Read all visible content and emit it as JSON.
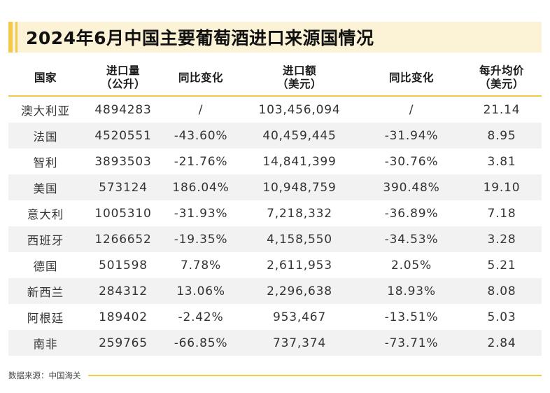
{
  "title": "2024年6月中国主要葡萄酒进口来源国情况",
  "header": {
    "country": "国家",
    "volume": [
      "进口量",
      "（公升）"
    ],
    "volume_yoy": "同比变化",
    "value": [
      "进口额",
      "（美元）"
    ],
    "value_yoy": "同比变化",
    "unit_price": [
      "每升均价",
      "（美元）"
    ]
  },
  "rows": [
    {
      "country": "澳大利亚",
      "volume": "4894283",
      "volume_yoy": "/",
      "value": "103,456,094",
      "value_yoy": "/",
      "unit_price": "21.14"
    },
    {
      "country": "法国",
      "volume": "4520551",
      "volume_yoy": "-43.60%",
      "value": "40,459,445",
      "value_yoy": "-31.94%",
      "unit_price": "8.95"
    },
    {
      "country": "智利",
      "volume": "3893503",
      "volume_yoy": "-21.76%",
      "value": "14,841,399",
      "value_yoy": "-30.76%",
      "unit_price": "3.81"
    },
    {
      "country": "美国",
      "volume": "573124",
      "volume_yoy": "186.04%",
      "value": "10,948,759",
      "value_yoy": "390.48%",
      "unit_price": "19.10"
    },
    {
      "country": "意大利",
      "volume": "1005310",
      "volume_yoy": "-31.93%",
      "value": "7,218,332",
      "value_yoy": "-36.89%",
      "unit_price": "7.18"
    },
    {
      "country": "西班牙",
      "volume": "1266652",
      "volume_yoy": "-19.35%",
      "value": "4,158,550",
      "value_yoy": "-34.53%",
      "unit_price": "3.28"
    },
    {
      "country": "德国",
      "volume": "501598",
      "volume_yoy": "7.78%",
      "value": "2,611,953",
      "value_yoy": "2.05%",
      "unit_price": "5.21"
    },
    {
      "country": "新西兰",
      "volume": "284312",
      "volume_yoy": "13.06%",
      "value": "2,296,638",
      "value_yoy": "18.93%",
      "unit_price": "8.08"
    },
    {
      "country": "阿根廷",
      "volume": "189402",
      "volume_yoy": "-2.42%",
      "value": "953,467",
      "value_yoy": "-13.51%",
      "unit_price": "5.03"
    },
    {
      "country": "南非",
      "volume": "259765",
      "volume_yoy": "-66.85%",
      "value": "737,374",
      "value_yoy": "-73.71%",
      "unit_price": "2.84"
    }
  ],
  "source": "数据来源：中国海关",
  "colors": {
    "accent": "#f2c94c",
    "title_background": "#fcf3d6",
    "stripe": "#f2f2f2"
  }
}
